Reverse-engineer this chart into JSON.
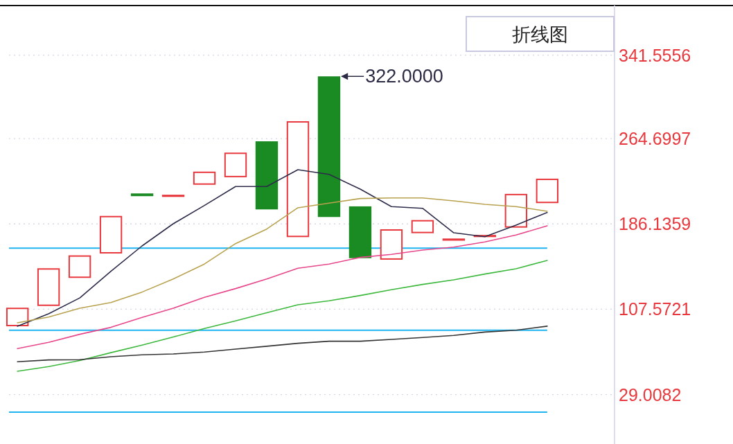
{
  "chart_data": {
    "type": "candlestick",
    "categories": [
      null,
      null,
      null,
      null,
      null,
      null,
      null,
      null,
      null,
      null,
      null,
      null,
      null,
      null,
      null,
      null,
      null,
      null
    ],
    "ohlc": [
      [
        91.9,
        109.0,
        91.9,
        109.0
      ],
      [
        110.6,
        145.3,
        110.6,
        145.3
      ],
      [
        136.4,
        157.2,
        136.4,
        157.2
      ],
      [
        158.9,
        193.5,
        158.9,
        193.5
      ],
      [
        214.2,
        214.2,
        211.7,
        211.7
      ],
      [
        211.0,
        213.0,
        211.0,
        213.0
      ],
      [
        222.2,
        234.3,
        222.2,
        234.3
      ],
      [
        229.1,
        251.8,
        229.1,
        251.8
      ],
      [
        262.2,
        262.2,
        199.5,
        199.5
      ],
      [
        174.0,
        280.7,
        174.0,
        280.7
      ],
      [
        322,
        322,
        192.5,
        192.5
      ],
      [
        202.3,
        202.3,
        154.6,
        154.6
      ],
      [
        153.2,
        181.2,
        153.2,
        181.2
      ],
      [
        177.6,
        189.7,
        177.6,
        189.7
      ],
      [
        170.7,
        172.7,
        170.7,
        172.7
      ],
      [
        174.0,
        176.0,
        174.0,
        176.0
      ],
      [
        182.7,
        213.8,
        182.7,
        213.8
      ],
      [
        205.3,
        227.8,
        205.3,
        227.8
      ]
    ],
    "colors": [
      "#e8383d",
      "#e8383d",
      "#e8383d",
      "#e8383d",
      "#1a8a22",
      "#e8383d",
      "#e8383d",
      "#e8383d",
      "#1a8a22",
      "#e8383d",
      "#1a8a22",
      "#1a8a22",
      "#e8383d",
      "#e8383d",
      "#e8383d",
      "#e8383d",
      "#e8383d",
      "#e8383d"
    ],
    "series": [
      {
        "type": "line",
        "color": "#2c2c4a",
        "values": [
          91.9,
          103.4,
          118.0,
          142.5,
          165.9,
          186.3,
          203.1,
          220.6,
          220.6,
          236.1,
          231.8,
          218.2,
          202.1,
          200.5,
          178.0,
          174.4,
          185.1,
          196.7
        ]
      },
      {
        "type": "line",
        "color": "#b8a24e",
        "values": [
          95.1,
          100.4,
          108.5,
          113.8,
          123.4,
          135.5,
          149.2,
          168.0,
          181.4,
          201.0,
          205.3,
          209.5,
          210.1,
          210.1,
          207.4,
          204.2,
          202.1,
          197.8
        ]
      },
      {
        "type": "line",
        "color": "#e8468a",
        "values": [
          71.3,
          77.1,
          84.5,
          90.9,
          100.0,
          108.5,
          118.5,
          126.6,
          135.5,
          145.3,
          149.2,
          155.3,
          158.1,
          162.1,
          164.8,
          169.6,
          175.9,
          184.4
        ]
      },
      {
        "type": "line",
        "color": "#3cb83c",
        "values": [
          50.5,
          54.8,
          60.3,
          67.6,
          74.6,
          82.0,
          89.8,
          96.9,
          104.3,
          111.7,
          115.4,
          120.2,
          125.6,
          130.4,
          134.7,
          140.0,
          144.9,
          152.5
        ]
      },
      {
        "type": "line",
        "color": "#333333",
        "values": [
          59.2,
          60.9,
          61.1,
          63.9,
          65.6,
          66.4,
          68.2,
          70.9,
          73.5,
          76.2,
          78.1,
          78.1,
          79.8,
          81.6,
          83.5,
          86.6,
          88.3,
          92.0
        ]
      }
    ],
    "ylim": [
      -16.5,
      387.2
    ],
    "yticks": [
      341.5556,
      264.6997,
      186.1359,
      107.5721,
      29.0082
    ],
    "ref_lines": [
      {
        "axis": "y",
        "value": 163.8,
        "color": "#1eb4f0"
      },
      {
        "axis": "y",
        "value": 88.3,
        "color": "#1eb4f0"
      },
      {
        "axis": "y",
        "value": 12.9,
        "color": "#1eb4f0"
      }
    ],
    "annotations": [
      "322.0000",
      "折线图"
    ],
    "grid": "y"
  }
}
